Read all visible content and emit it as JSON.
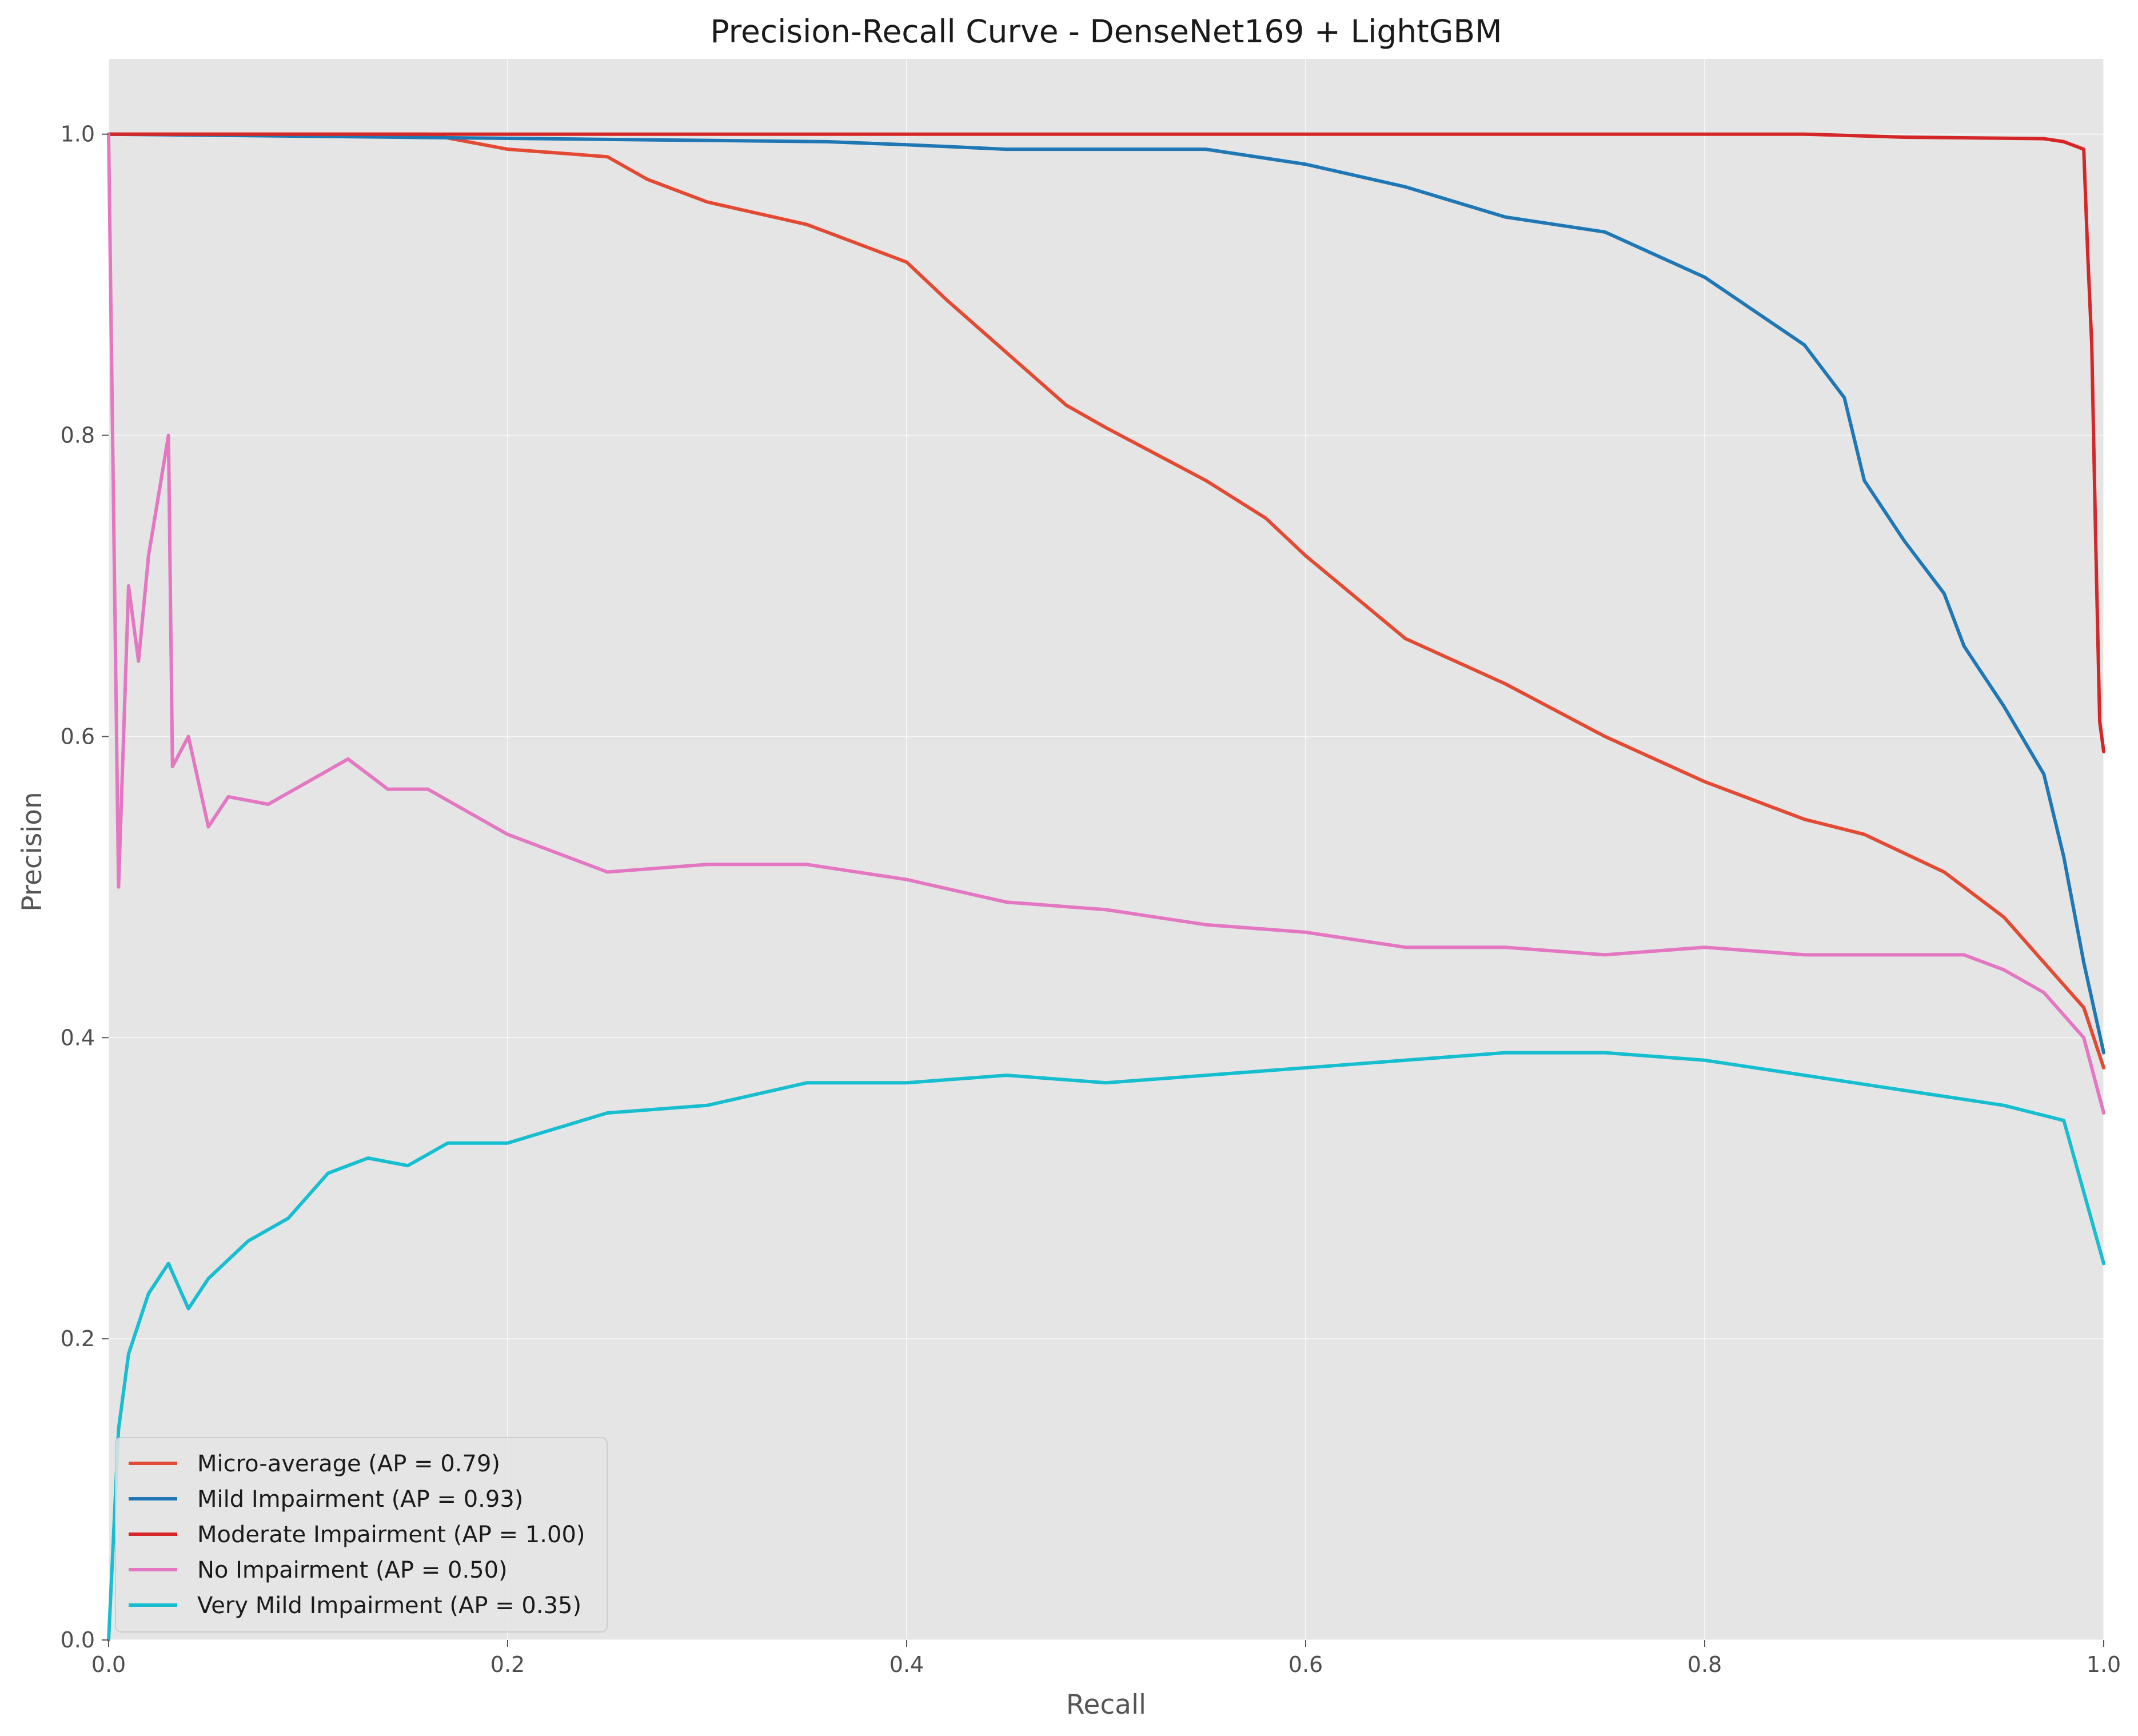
{
  "chart_data": {
    "type": "line",
    "title": "Precision-Recall Curve - DenseNet169 + LightGBM",
    "xlabel": "Recall",
    "ylabel": "Precision",
    "xlim": [
      0,
      1
    ],
    "ylim": [
      0,
      1.05
    ],
    "xticks": [
      "0.0",
      "0.2",
      "0.4",
      "0.6",
      "0.8",
      "1.0"
    ],
    "yticks": [
      "0.0",
      "0.2",
      "0.4",
      "0.6",
      "0.8",
      "1.0"
    ],
    "grid": true,
    "legend_position": "lower-left",
    "series": [
      {
        "name": "Micro-average (AP = 0.79)",
        "color": "#e24a33",
        "x": [
          0.0,
          0.16,
          0.18,
          0.2,
          0.25,
          0.27,
          0.3,
          0.35,
          0.4,
          0.42,
          0.45,
          0.48,
          0.5,
          0.55,
          0.58,
          0.6,
          0.65,
          0.7,
          0.75,
          0.8,
          0.85,
          0.88,
          0.92,
          0.95,
          0.97,
          0.99,
          1.0
        ],
        "y": [
          1.0,
          1.0,
          0.995,
          0.99,
          0.985,
          0.97,
          0.955,
          0.94,
          0.915,
          0.89,
          0.855,
          0.82,
          0.805,
          0.77,
          0.745,
          0.72,
          0.665,
          0.635,
          0.6,
          0.57,
          0.545,
          0.535,
          0.51,
          0.48,
          0.45,
          0.42,
          0.38
        ]
      },
      {
        "name": "Mild Impairment (AP = 0.93)",
        "color": "#1f77b4",
        "x": [
          0.0,
          0.36,
          0.4,
          0.45,
          0.55,
          0.6,
          0.65,
          0.7,
          0.75,
          0.8,
          0.85,
          0.87,
          0.88,
          0.9,
          0.92,
          0.93,
          0.95,
          0.97,
          0.98,
          0.99,
          1.0
        ],
        "y": [
          1.0,
          0.995,
          0.993,
          0.99,
          0.99,
          0.98,
          0.965,
          0.945,
          0.935,
          0.905,
          0.86,
          0.825,
          0.77,
          0.73,
          0.695,
          0.66,
          0.62,
          0.575,
          0.52,
          0.45,
          0.39
        ]
      },
      {
        "name": "Moderate Impairment (AP = 1.00)",
        "color": "#d62728",
        "x": [
          0.0,
          0.5,
          0.85,
          0.9,
          0.97,
          0.98,
          0.99,
          0.992,
          0.994,
          0.996,
          0.998,
          1.0
        ],
        "y": [
          1.0,
          1.0,
          1.0,
          0.998,
          0.997,
          0.995,
          0.99,
          0.92,
          0.86,
          0.73,
          0.61,
          0.59
        ]
      },
      {
        "name": "No Impairment (AP = 0.50)",
        "color": "#e377c2",
        "x": [
          0.0,
          0.005,
          0.01,
          0.015,
          0.02,
          0.03,
          0.032,
          0.04,
          0.05,
          0.06,
          0.08,
          0.1,
          0.12,
          0.14,
          0.16,
          0.18,
          0.2,
          0.25,
          0.3,
          0.35,
          0.4,
          0.45,
          0.5,
          0.55,
          0.6,
          0.65,
          0.7,
          0.75,
          0.8,
          0.85,
          0.9,
          0.93,
          0.95,
          0.97,
          0.99,
          1.0
        ],
        "y": [
          1.0,
          0.5,
          0.7,
          0.65,
          0.72,
          0.8,
          0.58,
          0.6,
          0.54,
          0.56,
          0.555,
          0.57,
          0.585,
          0.565,
          0.565,
          0.55,
          0.535,
          0.51,
          0.515,
          0.515,
          0.505,
          0.49,
          0.485,
          0.475,
          0.47,
          0.46,
          0.46,
          0.455,
          0.46,
          0.455,
          0.455,
          0.455,
          0.445,
          0.43,
          0.4,
          0.35
        ]
      },
      {
        "name": "Very Mild Impairment (AP = 0.35)",
        "color": "#17becf",
        "x": [
          0.0,
          0.005,
          0.01,
          0.02,
          0.03,
          0.04,
          0.05,
          0.07,
          0.09,
          0.11,
          0.13,
          0.15,
          0.17,
          0.2,
          0.25,
          0.3,
          0.35,
          0.4,
          0.45,
          0.5,
          0.55,
          0.6,
          0.65,
          0.7,
          0.75,
          0.8,
          0.85,
          0.9,
          0.95,
          0.98,
          1.0
        ],
        "y": [
          0.0,
          0.14,
          0.19,
          0.23,
          0.25,
          0.22,
          0.24,
          0.265,
          0.28,
          0.31,
          0.32,
          0.315,
          0.33,
          0.33,
          0.35,
          0.355,
          0.37,
          0.37,
          0.375,
          0.37,
          0.375,
          0.38,
          0.385,
          0.39,
          0.39,
          0.385,
          0.375,
          0.365,
          0.355,
          0.345,
          0.25
        ]
      }
    ]
  }
}
